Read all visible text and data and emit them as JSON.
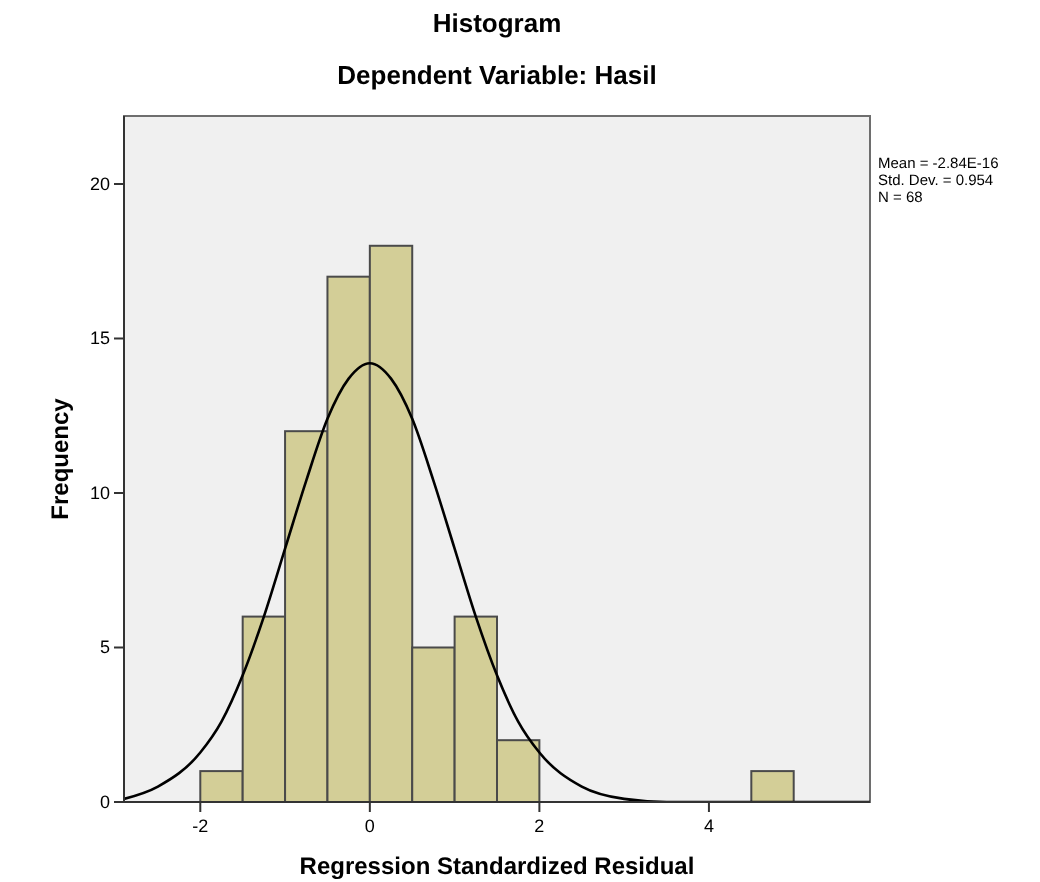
{
  "chart_data": {
    "type": "histogram",
    "title": "Histogram",
    "subtitle": "Dependent Variable: Hasil",
    "xlabel": "Regression Standardized Residual",
    "ylabel": "Frequency",
    "annotations": [
      "Mean = -2.84E-16",
      "Std. Dev. = 0.954",
      "N = 68"
    ],
    "xlim": [
      -2.9,
      5.9
    ],
    "xticks": [
      -2,
      0,
      2,
      4
    ],
    "ylim": [
      0,
      22.2
    ],
    "yticks": [
      0,
      5,
      10,
      15,
      20
    ],
    "series": [
      {
        "color": "#d3ce97",
        "bins": [
          -2,
          -1.5,
          -1,
          -0.5,
          0,
          0.5,
          1,
          1.5,
          2,
          2.5,
          3,
          3.5,
          4,
          4.5,
          5
        ],
        "values": [
          1,
          6,
          12,
          17,
          18,
          5,
          6,
          2,
          0,
          0,
          0,
          0,
          0,
          1
        ]
      },
      {
        "type": "line",
        "color": "#000000",
        "x": [
          -2.9,
          -2.5,
          -2,
          -1.75,
          -1.5,
          -1.25,
          -1,
          -0.75,
          -0.5,
          -0.25,
          0,
          0.25,
          0.5,
          0.75,
          1,
          1.25,
          1.5,
          1.75,
          2,
          2.5,
          3,
          3.5,
          4,
          5,
          5.9
        ],
        "values": [
          0.1,
          0.5,
          1.6,
          2.6,
          4.1,
          6,
          8.2,
          10.4,
          12.4,
          13.7,
          14.2,
          13.7,
          12.4,
          10.4,
          8.2,
          6,
          4.1,
          2.6,
          1.6,
          0.5,
          0.1,
          0,
          0,
          0,
          0
        ]
      }
    ]
  }
}
